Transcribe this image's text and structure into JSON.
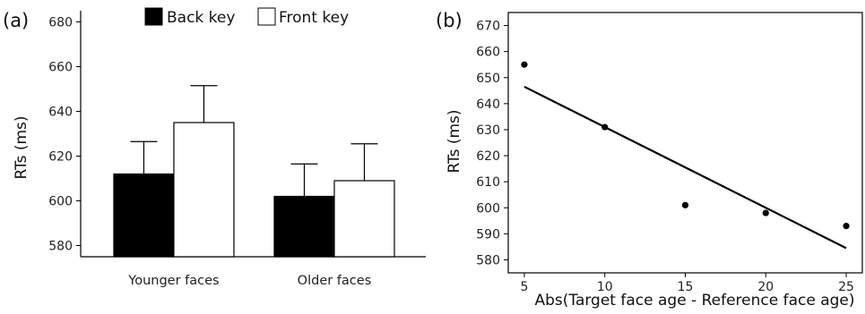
{
  "chart_data": [
    {
      "type": "bar",
      "panel_label": "(a)",
      "ylabel": "RTs (ms)",
      "xlabel": "",
      "ylim": [
        575,
        685
      ],
      "yticks": [
        580,
        600,
        620,
        640,
        660,
        680
      ],
      "categories": [
        "Younger faces",
        "Older faces"
      ],
      "series": [
        {
          "name": "Back key",
          "color": "#000000",
          "values": [
            612,
            602
          ],
          "errors": [
            14.5,
            14.5
          ]
        },
        {
          "name": "Front key",
          "color": "#ffffff",
          "values": [
            635,
            609
          ],
          "errors": [
            16.5,
            16.5
          ]
        }
      ],
      "error_bars": "upper",
      "legend": "top-center",
      "grid": false
    },
    {
      "type": "scatter",
      "panel_label": "(b)",
      "xlabel": "Abs(Target face age - Reference face age)",
      "ylabel": "RTs (ms)",
      "xlim": [
        4,
        26
      ],
      "ylim": [
        575,
        675
      ],
      "xticks": [
        5,
        10,
        15,
        20,
        25
      ],
      "yticks": [
        580,
        590,
        600,
        610,
        620,
        630,
        640,
        650,
        660,
        670
      ],
      "points": {
        "x": [
          5,
          10,
          15,
          20,
          25
        ],
        "y": [
          655,
          631,
          601,
          598,
          593
        ]
      },
      "trendline": {
        "x": [
          5,
          25
        ],
        "y": [
          646.5,
          584.5
        ]
      },
      "grid": false
    }
  ]
}
